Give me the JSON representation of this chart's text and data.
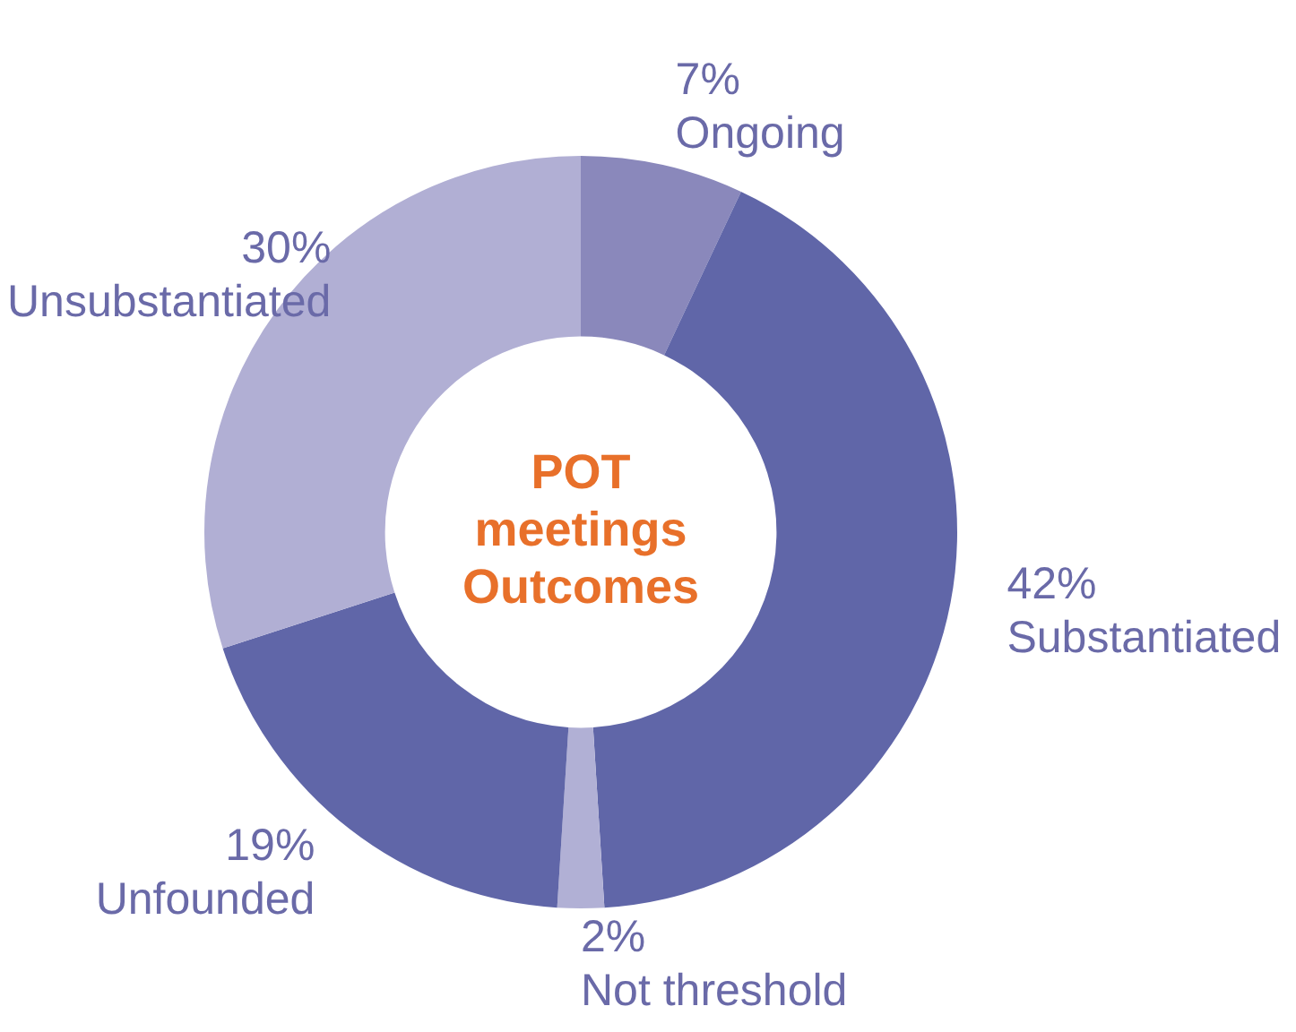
{
  "chart_data": {
    "type": "donut",
    "title": "POT meetings Outcomes",
    "categories": [
      "Ongoing",
      "Substantiated",
      "Not threshold",
      "Unfounded",
      "Unsubstantiated"
    ],
    "values": [
      7,
      42,
      2,
      19,
      30
    ],
    "value_labels": [
      "7%",
      "42%",
      "2%",
      "19%",
      "30%"
    ],
    "colors": [
      "#8a88bb",
      "#6066a8",
      "#b1b0d5",
      "#6066a8",
      "#b1afd4"
    ],
    "legend": false
  }
}
